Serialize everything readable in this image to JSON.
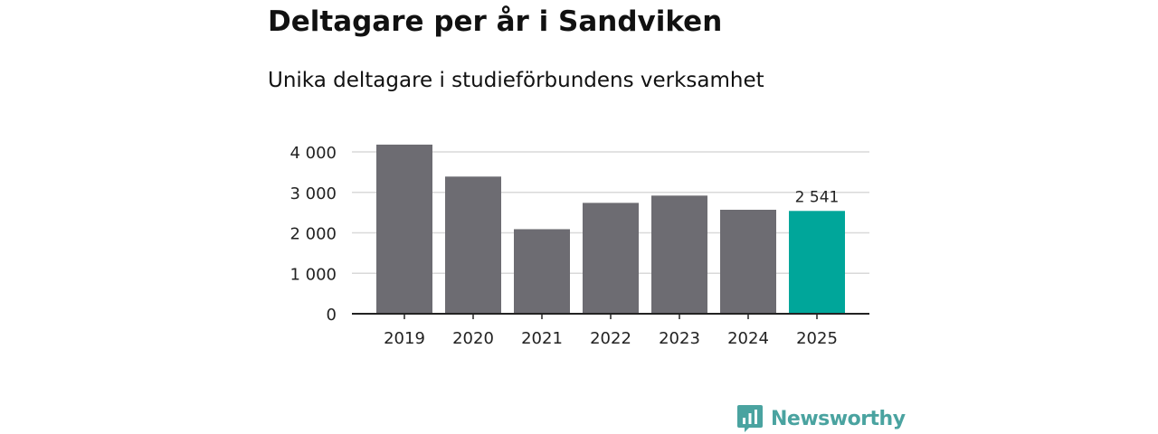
{
  "title": "Deltagare per år i Sandviken",
  "subtitle": "Unika deltagare i studieförbundens verksamhet",
  "chart_data": {
    "type": "bar",
    "categories": [
      "2019",
      "2020",
      "2021",
      "2022",
      "2023",
      "2024",
      "2025"
    ],
    "values": [
      4180,
      3390,
      2090,
      2740,
      2920,
      2570,
      2541
    ],
    "ylim": [
      0,
      4000
    ],
    "yticks": [
      0,
      1000,
      2000,
      3000,
      4000
    ],
    "ytick_labels": [
      "0",
      "1 000",
      "2 000",
      "3 000",
      "4 000"
    ],
    "highlight_index": 6,
    "highlight_label": "2 541",
    "xlabel": "",
    "ylabel": "",
    "colors": {
      "bar": "#6d6c72",
      "highlight": "#00a69a",
      "grid": "#d9d9d9",
      "axis": "#222222"
    }
  },
  "brand": {
    "name": "Newsworthy",
    "icon": "newsworthy-logo-icon",
    "color": "#4aa3a0"
  }
}
